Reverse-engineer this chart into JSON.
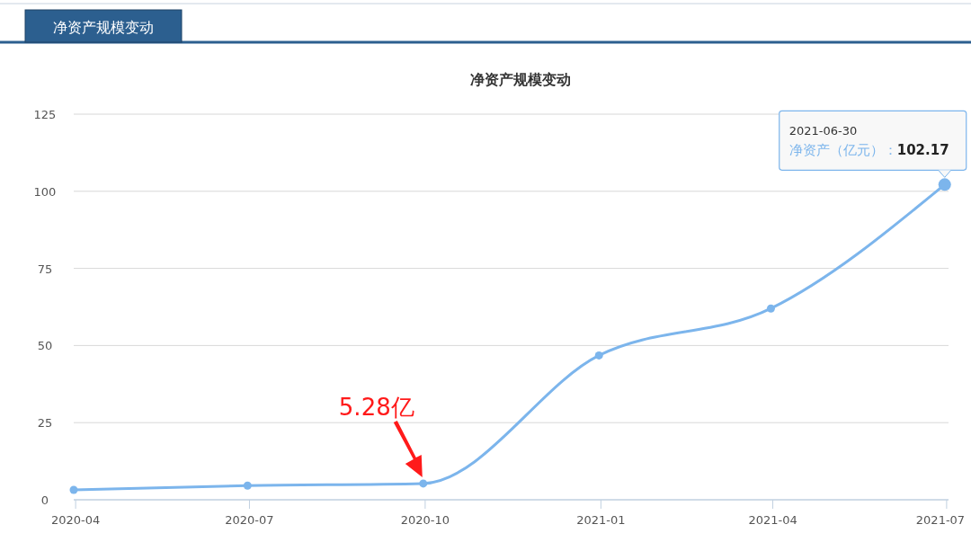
{
  "chart_data": {
    "type": "line",
    "title": "净资产规模变动",
    "x": [
      "2020-03-31",
      "2020-06-30",
      "2020-09-30",
      "2020-12-31",
      "2021-03-31",
      "2021-06-30"
    ],
    "series": [
      {
        "color": "#7cb5ec",
        "values": [
          3.2,
          4.6,
          5.28,
          46.8,
          62,
          102.17
        ]
      }
    ],
    "xlim": [
      "2020-03-31",
      "2021-07-02"
    ],
    "xticks": [
      {
        "value": "2020-04-01",
        "label": "2020-04"
      },
      {
        "value": "2020-07-01",
        "label": "2020-07"
      },
      {
        "value": "2020-10-01",
        "label": "2020-10"
      },
      {
        "value": "2021-01-01",
        "label": "2021-01"
      },
      {
        "value": "2021-04-01",
        "label": "2021-04"
      },
      {
        "value": "2021-07-01",
        "label": "2021-07"
      }
    ],
    "ylim": [
      0,
      125
    ],
    "yticks": [
      0,
      25,
      50,
      75,
      100,
      125
    ],
    "grid": "y",
    "marker": "circle",
    "line_style": "solid",
    "legend": false,
    "annotations": [
      "净资产规模变动",
      {
        "text": "2021-06-30\n净资产（亿元）：102.17",
        "x": "2021-06-30",
        "y": 102.17
      },
      {
        "text": "5.28亿",
        "x": "2020-09-30",
        "y": 5.28
      }
    ]
  }
}
